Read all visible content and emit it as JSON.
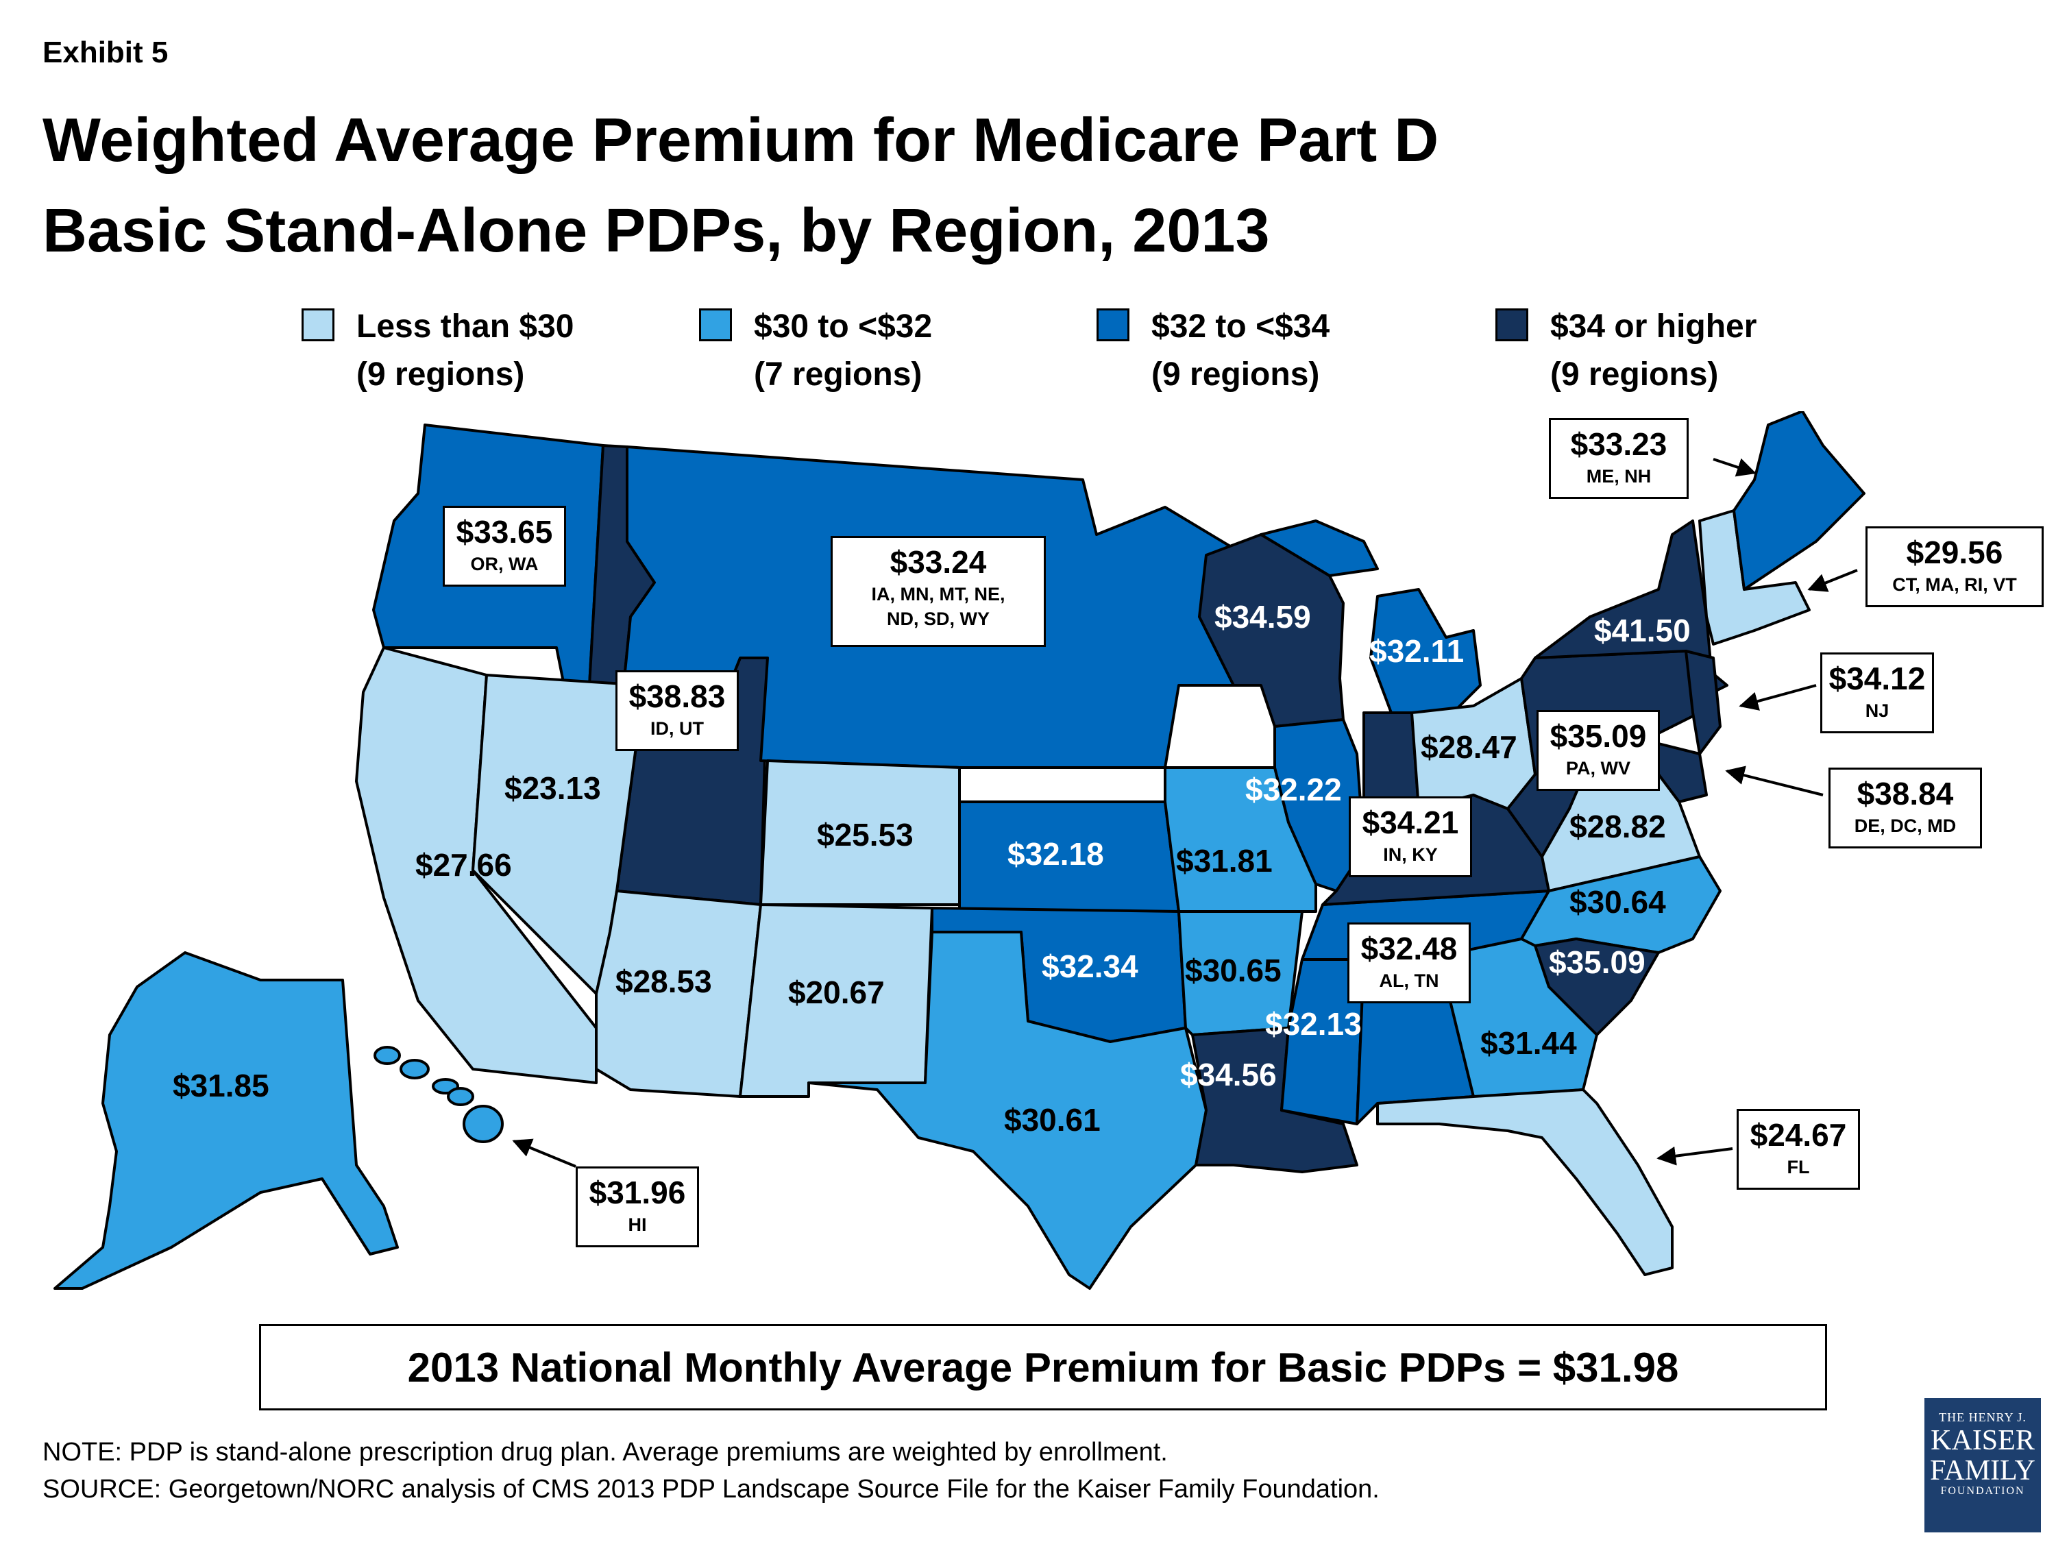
{
  "exhibit": "Exhibit 5",
  "title_line1": "Weighted Average Premium for Medicare Part D",
  "title_line2": "Basic Stand-Alone PDPs, by Region, 2013",
  "legend": [
    {
      "line1": "Less than $30",
      "line2": "(9 regions)",
      "color": "#b3dcf3"
    },
    {
      "line1": "$30 to <$32",
      "line2": "(7 regions)",
      "color": "#31a2e3"
    },
    {
      "line1": "$32 to <$34",
      "line2": "(9 regions)",
      "color": "#0069bd"
    },
    {
      "line1": "$34 or higher",
      "line2": "(9 regions)",
      "color": "#15325a"
    }
  ],
  "map_labels": {
    "ca": "$27.66",
    "nv": "$23.13",
    "az": "$28.53",
    "nm": "$20.67",
    "co": "$25.53",
    "tx": "$30.61",
    "ks": "$32.18",
    "ok": "$32.34",
    "mo": "$31.81",
    "ar": "$30.65",
    "la": "$34.56",
    "ms": "$32.13",
    "il": "$32.22",
    "wi": "$34.59",
    "mi": "$32.11",
    "oh": "$28.47",
    "va": "$28.82",
    "nc": "$30.64",
    "sc": "$35.09",
    "ga": "$31.44",
    "ny": "$41.50",
    "ak": "$31.85"
  },
  "callouts": {
    "or_wa": {
      "value": "$33.65",
      "states": "OR, WA"
    },
    "id_ut": {
      "value": "$38.83",
      "states": "ID, UT"
    },
    "plains": {
      "value": "$33.24",
      "states1": "IA, MN, MT, NE,",
      "states2": "ND, SD, WY"
    },
    "me_nh": {
      "value": "$33.23",
      "states": "ME, NH"
    },
    "ne_south": {
      "value": "$29.56",
      "states": "CT, MA, RI, VT"
    },
    "nj": {
      "value": "$34.12",
      "states": "NJ"
    },
    "pa_wv": {
      "value": "$35.09",
      "states": "PA, WV"
    },
    "de_dc_md": {
      "value": "$38.84",
      "states": "DE, DC, MD"
    },
    "in_ky": {
      "value": "$34.21",
      "states": "IN, KY"
    },
    "al_tn": {
      "value": "$32.48",
      "states": "AL, TN"
    },
    "fl": {
      "value": "$24.67",
      "states": "FL"
    },
    "hi": {
      "value": "$31.96",
      "states": "HI"
    }
  },
  "national": "2013 National Monthly Average Premium for Basic PDPs = $31.98",
  "note": "NOTE: PDP is stand-alone prescription drug plan. Average premiums are weighted by enrollment.",
  "source": "SOURCE: Georgetown/NORC analysis of CMS 2013 PDP Landscape Source File for the Kaiser Family Foundation.",
  "logo": {
    "line1": "THE HENRY J.",
    "line2": "KAISER",
    "line3": "FAMILY",
    "line4": "FOUNDATION"
  }
}
